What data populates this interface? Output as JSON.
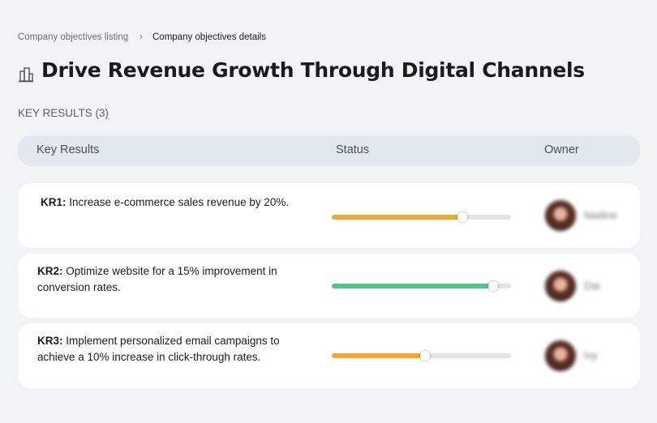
{
  "breadcrumb": [
    "Company objectives listing",
    "Company objectives details"
  ],
  "header": {
    "title": "Drive Revenue Growth Through Digital Channels"
  },
  "section_label": "KEY RESULTS (3)",
  "table": {
    "columns": [
      "Key Results",
      "Status",
      "Owner"
    ],
    "rows": [
      {
        "code": "KR1:",
        "text": "Increase e-commerce sales revenue by 20%.",
        "progress": 73,
        "color": "#f6a530",
        "owner": "Nadine"
      },
      {
        "code": "KR2:",
        "text": "Optimize website for a 15% improvement in conversion rates.",
        "progress": 90,
        "color": "#52c58b",
        "owner": "Dai"
      },
      {
        "code": "KR3:",
        "text": "Implement personalized email campaigns to achieve a 10% increase in click-through rates.",
        "progress": 52,
        "color": "#f6a530",
        "owner": "Ivy"
      }
    ]
  }
}
